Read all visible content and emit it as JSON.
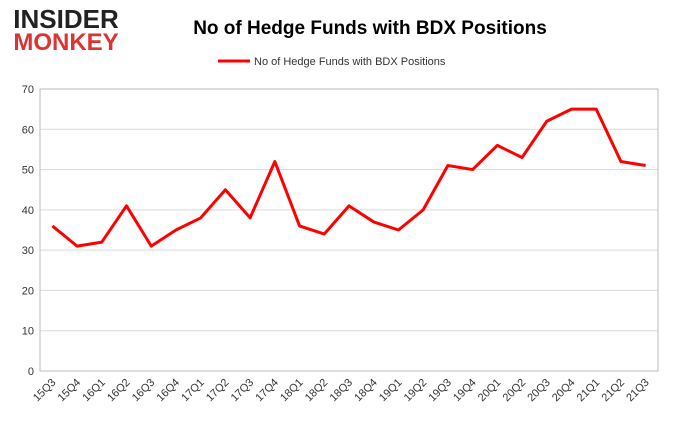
{
  "chart_data": {
    "type": "line",
    "logo": [
      "INSIDER",
      "MONKEY"
    ],
    "title": "No of Hedge Funds with BDX Positions",
    "categories": [
      "15Q3",
      "15Q4",
      "16Q1",
      "16Q2",
      "16Q3",
      "16Q4",
      "17Q1",
      "17Q2",
      "17Q3",
      "17Q4",
      "18Q1",
      "18Q2",
      "18Q3",
      "18Q4",
      "19Q1",
      "19Q2",
      "19Q3",
      "19Q4",
      "20Q1",
      "20Q2",
      "20Q3",
      "20Q4",
      "21Q1",
      "21Q2",
      "21Q3"
    ],
    "series": [
      {
        "name": "No of Hedge Funds with BDX Positions",
        "color": "#ff0000",
        "values": [
          36,
          31,
          32,
          41,
          31,
          35,
          38,
          45,
          38,
          52,
          36,
          34,
          41,
          37,
          35,
          40,
          51,
          50,
          56,
          53,
          62,
          65,
          65,
          52,
          51
        ]
      }
    ],
    "ylim": [
      0,
      70
    ],
    "yticks": [
      0,
      10,
      20,
      30,
      40,
      50,
      60,
      70
    ],
    "grid": true,
    "legend": "top"
  }
}
